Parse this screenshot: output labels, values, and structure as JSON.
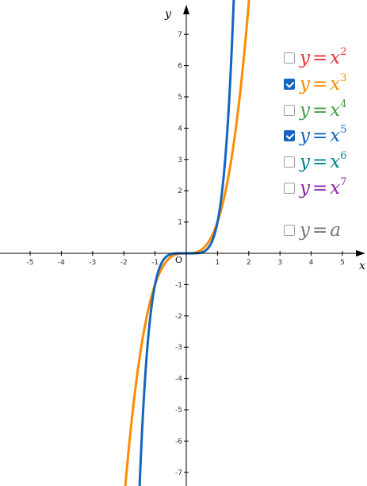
{
  "chart_data": {
    "type": "line",
    "xlabel": "x",
    "ylabel": "y",
    "origin_label": "O",
    "xlim": [
      -5.9,
      5.6
    ],
    "ylim": [
      -7.6,
      8.0
    ],
    "x_ticks": [
      -5,
      -4,
      -3,
      -2,
      -1,
      1,
      2,
      3,
      4,
      5
    ],
    "x_tick_labels": [
      "-5",
      "-4",
      "-3",
      "-2",
      "-1",
      "1",
      "2",
      "3",
      "4",
      "5"
    ],
    "y_ticks": [
      -7,
      -6,
      -5,
      -4,
      -3,
      -2,
      -1,
      1,
      2,
      3,
      4,
      5,
      6,
      7
    ],
    "y_tick_labels": [
      "-7",
      "-6",
      "-5",
      "-4",
      "-3",
      "-2",
      "-1",
      "1",
      "2",
      "3",
      "4",
      "5",
      "6",
      "7"
    ],
    "grid": false,
    "legend_position": "top-right",
    "series": [
      {
        "name": "y = x^2",
        "exponent": 2,
        "visible": false,
        "color": "#e53935"
      },
      {
        "name": "y = x^3",
        "exponent": 3,
        "visible": true,
        "color": "#fb8c00"
      },
      {
        "name": "y = x^4",
        "exponent": 4,
        "visible": false,
        "color": "#43a047"
      },
      {
        "name": "y = x^5",
        "exponent": 5,
        "visible": true,
        "color": "#1565c0"
      },
      {
        "name": "y = x^6",
        "exponent": 6,
        "visible": false,
        "color": "#00838f"
      },
      {
        "name": "y = x^7",
        "exponent": 7,
        "visible": false,
        "color": "#8e24aa"
      }
    ]
  },
  "legend": {
    "items": [
      {
        "var": "y",
        "op": "=",
        "base": "x",
        "exp": "2",
        "checked": false,
        "color": "#e53935"
      },
      {
        "var": "y",
        "op": "=",
        "base": "x",
        "exp": "3",
        "checked": true,
        "color": "#fb8c00"
      },
      {
        "var": "y",
        "op": "=",
        "base": "x",
        "exp": "4",
        "checked": false,
        "color": "#43a047"
      },
      {
        "var": "y",
        "op": "=",
        "base": "x",
        "exp": "5",
        "checked": true,
        "color": "#1565c0"
      },
      {
        "var": "y",
        "op": "=",
        "base": "x",
        "exp": "6",
        "checked": false,
        "color": "#00838f"
      },
      {
        "var": "y",
        "op": "=",
        "base": "x",
        "exp": "7",
        "checked": false,
        "color": "#8e24aa"
      }
    ],
    "constant": {
      "var": "y",
      "op": "=",
      "base": "a",
      "checked": false,
      "color": "#757575"
    }
  },
  "colors": {
    "axis": "#000000"
  }
}
